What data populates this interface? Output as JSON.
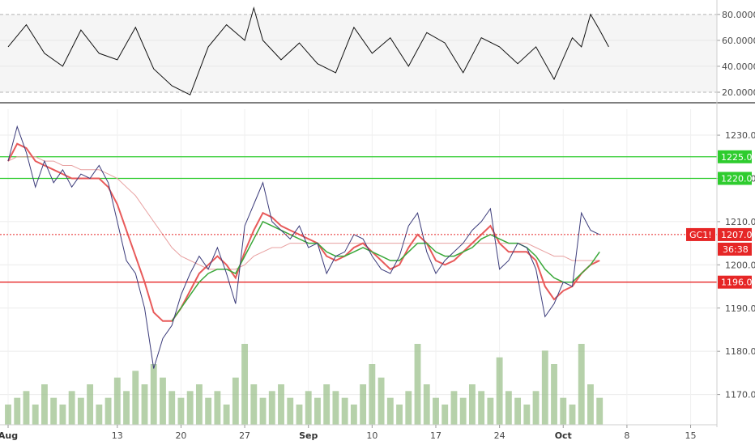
{
  "colors": {
    "price": "#3b3b7a",
    "ma_fast": "#e85a5a",
    "ma_slow": "#e8a0a0",
    "ma_green": "#3aa83a",
    "resistance": "#2ecc2e",
    "support": "#e62626",
    "volume": "#9dc28e",
    "rsi": "#111111",
    "current_price": "#e62626"
  },
  "chart_data": [
    {
      "type": "line",
      "panel": "rsi",
      "ylim": [
        15,
        88
      ],
      "yticks": [
        "80.0000",
        "60.0000",
        "40.0000",
        "20.0000"
      ],
      "ytick_values": [
        80,
        60,
        40,
        20
      ],
      "band": [
        20,
        80
      ],
      "x_day": [
        0,
        2,
        4,
        6,
        8,
        10,
        12,
        14,
        16,
        18,
        20,
        22,
        24,
        26,
        27,
        28,
        30,
        32,
        34,
        36,
        38,
        40,
        42,
        44,
        46,
        48,
        50,
        52,
        54,
        56,
        58,
        60,
        62,
        63,
        64,
        65,
        66
      ],
      "values": [
        55,
        72,
        50,
        40,
        68,
        50,
        45,
        70,
        38,
        25,
        18,
        55,
        72,
        60,
        85,
        60,
        45,
        58,
        42,
        35,
        70,
        50,
        62,
        40,
        66,
        58,
        35,
        62,
        55,
        42,
        55,
        30,
        62,
        55,
        80,
        68,
        55
      ]
    },
    {
      "type": "line",
      "panel": "price",
      "ylim": [
        1163,
        1236
      ],
      "yticks": [
        "1230.0",
        "1220.0",
        "1210.0",
        "1200.0",
        "1190.0",
        "1180.0",
        "1170.0"
      ],
      "ytick_values": [
        1230,
        1220,
        1210,
        1200,
        1190,
        1180,
        1170
      ],
      "xlim": [
        0,
        77
      ],
      "xticks": [
        "Aug",
        "13",
        "20",
        "27",
        "Sep",
        "10",
        "17",
        "24",
        "Oct",
        "8",
        "15"
      ],
      "xtick_values": [
        0,
        12,
        19,
        26,
        33,
        40,
        47,
        54,
        61,
        68,
        75
      ],
      "x_day": [
        0,
        1,
        2,
        3,
        4,
        5,
        6,
        7,
        8,
        9,
        10,
        11,
        12,
        13,
        14,
        15,
        16,
        17,
        18,
        19,
        20,
        21,
        22,
        23,
        24,
        25,
        26,
        27,
        28,
        29,
        30,
        31,
        32,
        33,
        34,
        35,
        36,
        37,
        38,
        39,
        40,
        41,
        42,
        43,
        44,
        45,
        46,
        47,
        48,
        49,
        50,
        51,
        52,
        53,
        54,
        55,
        56,
        57,
        58,
        59,
        60,
        61,
        62,
        63,
        64,
        65
      ],
      "series": [
        {
          "role": "price",
          "values": [
            1224,
            1232,
            1226,
            1218,
            1224,
            1219,
            1222,
            1218,
            1221,
            1220,
            1223,
            1219,
            1210,
            1201,
            1198,
            1190,
            1176,
            1183,
            1186,
            1193,
            1198,
            1202,
            1199,
            1204,
            1198,
            1191,
            1209,
            1214,
            1219,
            1210,
            1208,
            1206,
            1209,
            1204,
            1205,
            1198,
            1202,
            1203,
            1207,
            1206,
            1202,
            1199,
            1198,
            1202,
            1209,
            1212,
            1203,
            1198,
            1201,
            1203,
            1205,
            1208,
            1210,
            1213,
            1199,
            1201,
            1205,
            1204,
            1199,
            1188,
            1191,
            1196,
            1195,
            1212,
            1208,
            1207
          ]
        },
        {
          "role": "ma_fast",
          "values": [
            1224,
            1228,
            1227,
            1224,
            1223,
            1222,
            1221,
            1220,
            1220,
            1220,
            1220,
            1218,
            1214,
            1208,
            1202,
            1196,
            1189,
            1187,
            1187,
            1190,
            1194,
            1198,
            1200,
            1202,
            1200,
            1197,
            1203,
            1208,
            1212,
            1211,
            1209,
            1208,
            1207,
            1206,
            1205,
            1202,
            1201,
            1202,
            1204,
            1205,
            1203,
            1201,
            1199,
            1200,
            1204,
            1207,
            1205,
            1201,
            1200,
            1201,
            1203,
            1205,
            1207,
            1209,
            1205,
            1203,
            1203,
            1203,
            1201,
            1195,
            1192,
            1194,
            1195,
            1198,
            1200,
            1201
          ]
        },
        {
          "role": "ma_slow",
          "values": [
            1224,
            1225,
            1225,
            1225,
            1224,
            1224,
            1223,
            1223,
            1222,
            1222,
            1222,
            1221,
            1220,
            1218,
            1216,
            1213,
            1210,
            1207,
            1204,
            1202,
            1201,
            1200,
            1199,
            1199,
            1199,
            1199,
            1200,
            1202,
            1203,
            1204,
            1204,
            1205,
            1205,
            1205,
            1205,
            1205,
            1205,
            1205,
            1205,
            1205,
            1205,
            1205,
            1205,
            1205,
            1205,
            1205,
            1205,
            1205,
            1205,
            1205,
            1205,
            1205,
            1205,
            1205,
            1205,
            1205,
            1205,
            1205,
            1204,
            1203,
            1202,
            1202,
            1201,
            1201,
            1201,
            1201
          ]
        },
        {
          "role": "ma_green",
          "values": [
            null,
            null,
            null,
            null,
            null,
            null,
            null,
            null,
            null,
            null,
            null,
            null,
            null,
            null,
            null,
            null,
            null,
            null,
            1187,
            1190,
            1193,
            1196,
            1198,
            1199,
            1199,
            1198,
            1202,
            1206,
            1210,
            1209,
            1208,
            1207,
            1206,
            1205,
            1205,
            1203,
            1202,
            1202,
            1203,
            1204,
            1203,
            1202,
            1201,
            1201,
            1203,
            1205,
            1205,
            1203,
            1202,
            1202,
            1203,
            1204,
            1206,
            1207,
            1206,
            1205,
            1205,
            1204,
            1202,
            1199,
            1197,
            1196,
            1196,
            1198,
            1200,
            1203
          ]
        }
      ],
      "volume": [
        3,
        4,
        5,
        3,
        6,
        4,
        3,
        5,
        4,
        6,
        3,
        4,
        7,
        5,
        8,
        6,
        9,
        7,
        5,
        4,
        5,
        6,
        4,
        5,
        3,
        7,
        12,
        6,
        4,
        5,
        6,
        4,
        3,
        5,
        4,
        6,
        5,
        4,
        3,
        6,
        9,
        7,
        4,
        3,
        5,
        12,
        6,
        4,
        3,
        5,
        4,
        6,
        5,
        4,
        10,
        5,
        4,
        3,
        5,
        11,
        9,
        4,
        3,
        12,
        6,
        4
      ],
      "hlines": [
        {
          "value": 1225,
          "label": "1225.0",
          "color": "#2ecc2e"
        },
        {
          "value": 1220,
          "label": "1220.0",
          "color": "#2ecc2e"
        },
        {
          "value": 1196,
          "label": "1196.0",
          "color": "#e62626"
        }
      ],
      "current": {
        "value": 1207,
        "symbol": "GC1!",
        "label": "1207.0",
        "countdown": "36:38"
      }
    }
  ]
}
